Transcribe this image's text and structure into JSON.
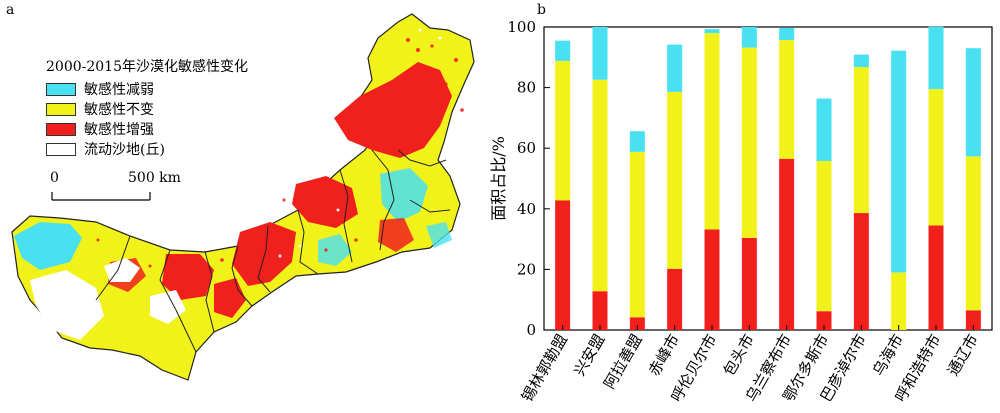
{
  "panel_a_label": "a",
  "panel_b_label": "b",
  "legend": {
    "title": "2000-2015年沙漠化敏感性变化",
    "items": [
      {
        "label": "敏感性减弱",
        "color": "#49E1F1"
      },
      {
        "label": "敏感性不变",
        "color": "#F2F21B"
      },
      {
        "label": "敏感性增强",
        "color": "#F0201C"
      },
      {
        "label": "流动沙地(丘)",
        "color": "#FFFFFF"
      }
    ]
  },
  "scale": {
    "start": "0",
    "end": "500 km"
  },
  "chart_data": {
    "type": "bar",
    "stacked": true,
    "ylabel": "面积占比/%",
    "ylim": [
      0,
      100
    ],
    "yticks": [
      0,
      20,
      40,
      60,
      80,
      100
    ],
    "categories": [
      "锡林郭勒盟",
      "兴安盟",
      "阿拉善盟",
      "赤峰市",
      "呼伦贝尔市",
      "包头市",
      "乌兰察布市",
      "鄂尔多斯市",
      "巴彦淖尔市",
      "乌海市",
      "呼和浩特市",
      "通辽市"
    ],
    "series": [
      {
        "name": "敏感性增强",
        "color": "#F0201C",
        "values": [
          42.8,
          12.8,
          4.2,
          20.2,
          33.2,
          30.4,
          56.5,
          6.2,
          38.6,
          0,
          34.5,
          6.5
        ]
      },
      {
        "name": "敏感性不变",
        "color": "#F2F21B",
        "values": [
          46.0,
          69.8,
          54.6,
          58.4,
          64.8,
          62.8,
          39.2,
          49.6,
          48.2,
          19.0,
          45.0,
          50.8
        ]
      },
      {
        "name": "敏感性减弱",
        "color": "#49E1F1",
        "values": [
          6.7,
          17.4,
          6.8,
          15.6,
          1.3,
          6.8,
          4.0,
          20.6,
          4.1,
          73.2,
          20.6,
          35.7
        ]
      }
    ]
  }
}
